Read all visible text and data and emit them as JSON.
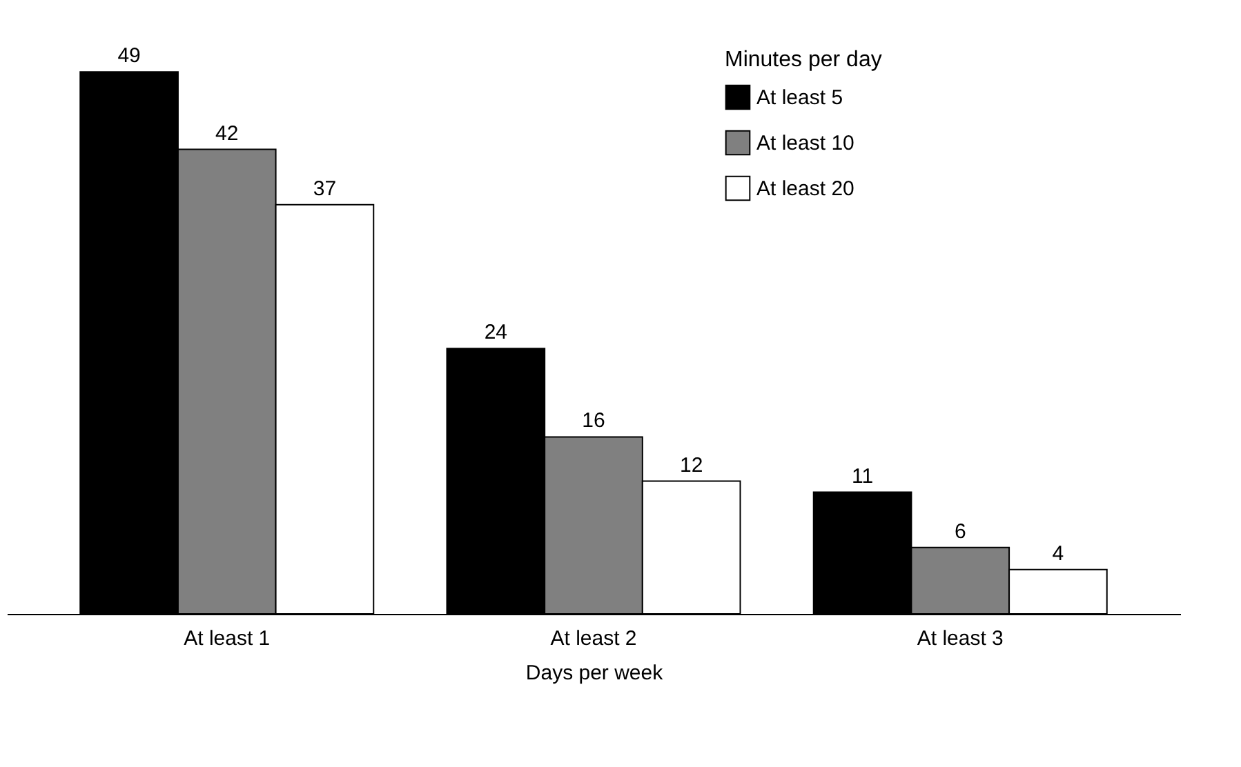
{
  "chart_data": {
    "type": "bar",
    "xlabel": "Days per week",
    "legend_title": "Minutes per day",
    "categories": [
      "At least 1",
      "At least 2",
      "At least 3"
    ],
    "series": [
      {
        "name": "At least 5",
        "color": "#000000",
        "values": [
          49,
          24,
          11
        ]
      },
      {
        "name": "At least 10",
        "color": "#808080",
        "values": [
          42,
          16,
          6
        ]
      },
      {
        "name": "At least 20",
        "color": "#ffffff",
        "values": [
          37,
          12,
          4
        ]
      }
    ],
    "data_labels": true,
    "legend": "top right",
    "grid": false
  }
}
